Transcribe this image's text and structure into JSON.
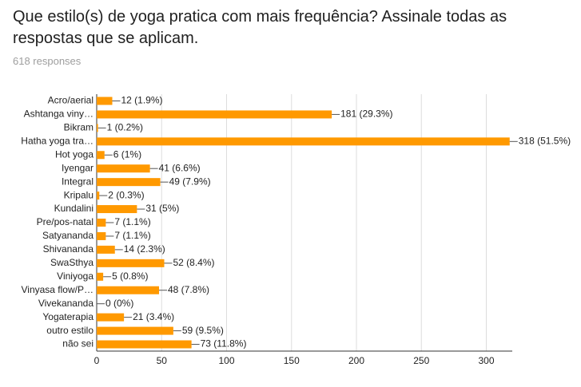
{
  "chart_data": {
    "type": "bar",
    "orientation": "horizontal",
    "title": "Que estilo(s) de yoga pratica com mais frequência? Assinale todas as respostas que se aplicam.",
    "subtitle": "618 responses",
    "categories": [
      "Acro/aerial",
      "Ashtanga viny…",
      "Bikram",
      "Hatha yoga tra…",
      "Hot yoga",
      "Iyengar",
      "Integral",
      "Kripalu",
      "Kundalini",
      "Pre/pos-natal",
      "Satyananda",
      "Shivananda",
      "SwaSthya",
      "Viniyoga",
      "Vinyasa flow/P…",
      "Vivekananda",
      "Yogaterapia",
      "outro estilo",
      "não sei"
    ],
    "values": [
      12,
      181,
      1,
      318,
      6,
      41,
      49,
      2,
      31,
      7,
      7,
      14,
      52,
      5,
      48,
      0,
      21,
      59,
      73
    ],
    "value_labels": [
      "12 (1.9%)",
      "181 (29.3%)",
      "1 (0.2%)",
      "318 (51.5%)",
      "6 (1%)",
      "41 (6.6%)",
      "49 (7.9%)",
      "2 (0.3%)",
      "31 (5%)",
      "7 (1.1%)",
      "7 (1.1%)",
      "14 (2.3%)",
      "52 (8.4%)",
      "5 (0.8%)",
      "48 (7.8%)",
      "0 (0%)",
      "21 (3.4%)",
      "59 (9.5%)",
      "73 (11.8%)"
    ],
    "color": "#ff9900",
    "xlim": [
      0,
      320
    ],
    "xticks": [
      0,
      50,
      100,
      150,
      200,
      250,
      300
    ],
    "grid": true
  }
}
